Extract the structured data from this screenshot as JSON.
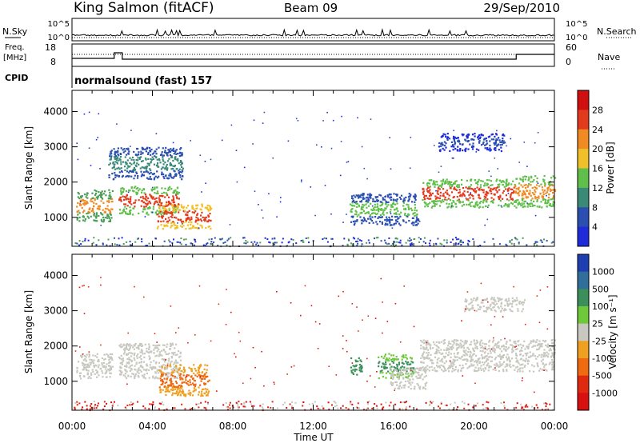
{
  "header": {
    "station": "King Salmon (fitACF)",
    "beam": "Beam 09",
    "date": "29/Sep/2010"
  },
  "strip": {
    "nsky_label": "N.Sky",
    "nsearch_label": "N.Search",
    "freq_label_line1": "Freq.",
    "freq_label_line2": "[MHz]",
    "nave_label": "Nave",
    "cpid_label": "CPID",
    "cpid_text": "normalsound (fast) 157",
    "noise_ticks_left": [
      "10^5",
      "10^0"
    ],
    "noise_ticks_right": [
      "10^5",
      "10^0"
    ],
    "freq_ticks": [
      "18",
      "8"
    ],
    "nave_ticks": [
      "60",
      "0"
    ]
  },
  "chart_data": [
    {
      "type": "heatmap",
      "name": "power",
      "ylabel": "Slant Range [km]",
      "xlabel": "Time UT",
      "x_ticks": [
        "00:00",
        "04:00",
        "08:00",
        "12:00",
        "16:00",
        "20:00",
        "00:00"
      ],
      "y_ticks": [
        "1000",
        "2000",
        "3000",
        "4000"
      ],
      "xlim_hours": [
        0,
        24
      ],
      "ylim_km": [
        180,
        4600
      ],
      "colorbar": {
        "label": "Power [dB]",
        "ticks": [
          "4",
          "8",
          "12",
          "16",
          "20",
          "24",
          "28"
        ],
        "colors": [
          "#1f2bd8",
          "#2a4fb0",
          "#3b8a78",
          "#5fbf4a",
          "#f0c02a",
          "#f08a22",
          "#e23a1c",
          "#d01010"
        ]
      },
      "echo_regions": [
        {
          "t0": 0.2,
          "t1": 2.0,
          "r0": 900,
          "r1": 1800,
          "level": "#4a9e56",
          "core": "#f08a22"
        },
        {
          "t0": 2.3,
          "t1": 5.3,
          "r0": 1100,
          "r1": 1900,
          "level": "#5fbf4a",
          "core": "#e23a1c"
        },
        {
          "t0": 4.2,
          "t1": 6.9,
          "r0": 700,
          "r1": 1400,
          "level": "#f0c02a",
          "core": "#e23a1c"
        },
        {
          "t0": 1.8,
          "t1": 5.5,
          "r0": 2100,
          "r1": 3000,
          "level": "#2a4fb0",
          "core": "#3b8a78"
        },
        {
          "t0": 13.8,
          "t1": 17.2,
          "r0": 800,
          "r1": 1700,
          "level": "#2a4fb0",
          "core": "#5fbf4a"
        },
        {
          "t0": 17.4,
          "t1": 22.0,
          "r0": 1300,
          "r1": 2100,
          "level": "#5fbf4a",
          "core": "#e23a1c"
        },
        {
          "t0": 22.0,
          "t1": 24.0,
          "r0": 1300,
          "r1": 2200,
          "level": "#5fbf4a",
          "core": "#f08a22"
        },
        {
          "t0": 18.2,
          "t1": 21.5,
          "r0": 2900,
          "r1": 3400,
          "level": "#1f2bd8",
          "core": "#2a4fb0"
        }
      ]
    },
    {
      "type": "heatmap",
      "name": "velocity",
      "ylabel": "Slant Range [km]",
      "xlabel": "Time UT",
      "x_ticks": [
        "00:00",
        "04:00",
        "08:00",
        "12:00",
        "16:00",
        "20:00",
        "00:00"
      ],
      "y_ticks": [
        "1000",
        "2000",
        "3000",
        "4000"
      ],
      "xlim_hours": [
        0,
        24
      ],
      "ylim_km": [
        180,
        4600
      ],
      "colorbar": {
        "label": "Velocity [m s⁻¹]",
        "ticks": [
          "1000",
          "500",
          "100",
          "25",
          "-25",
          "-100",
          "-500",
          "-1000"
        ],
        "colors": [
          "#1f3fb0",
          "#2f6f9a",
          "#3b8f5a",
          "#6fc83a",
          "#c8c8c0",
          "#f0a020",
          "#f06a10",
          "#e02a10",
          "#d81010"
        ]
      },
      "echo_regions": [
        {
          "t0": 0.2,
          "t1": 2.0,
          "r0": 1100,
          "r1": 1800,
          "level": "#c8c8c0",
          "core": "#c8c8c0"
        },
        {
          "t0": 2.3,
          "t1": 5.4,
          "r0": 1100,
          "r1": 2100,
          "level": "#c8c8c0",
          "core": "#c8c8c0"
        },
        {
          "t0": 4.3,
          "t1": 6.8,
          "r0": 600,
          "r1": 1500,
          "level": "#f0a020",
          "core": "#f06a10"
        },
        {
          "t0": 13.8,
          "t1": 14.4,
          "r0": 1200,
          "r1": 1700,
          "level": "#3b8f5a",
          "core": "#3b8f5a"
        },
        {
          "t0": 15.2,
          "t1": 17.0,
          "r0": 1100,
          "r1": 1800,
          "level": "#6fc83a",
          "core": "#3b8f5a"
        },
        {
          "t0": 17.3,
          "t1": 24.0,
          "r0": 1300,
          "r1": 2200,
          "level": "#c8c8c0",
          "core": "#c8c8c0"
        },
        {
          "t0": 15.8,
          "t1": 17.6,
          "r0": 800,
          "r1": 1400,
          "level": "#c8c8c0",
          "core": "#c8c8c0"
        },
        {
          "t0": 19.5,
          "t1": 22.5,
          "r0": 3000,
          "r1": 3400,
          "level": "#c8c8c0",
          "core": "#c8c8c0"
        }
      ]
    }
  ]
}
